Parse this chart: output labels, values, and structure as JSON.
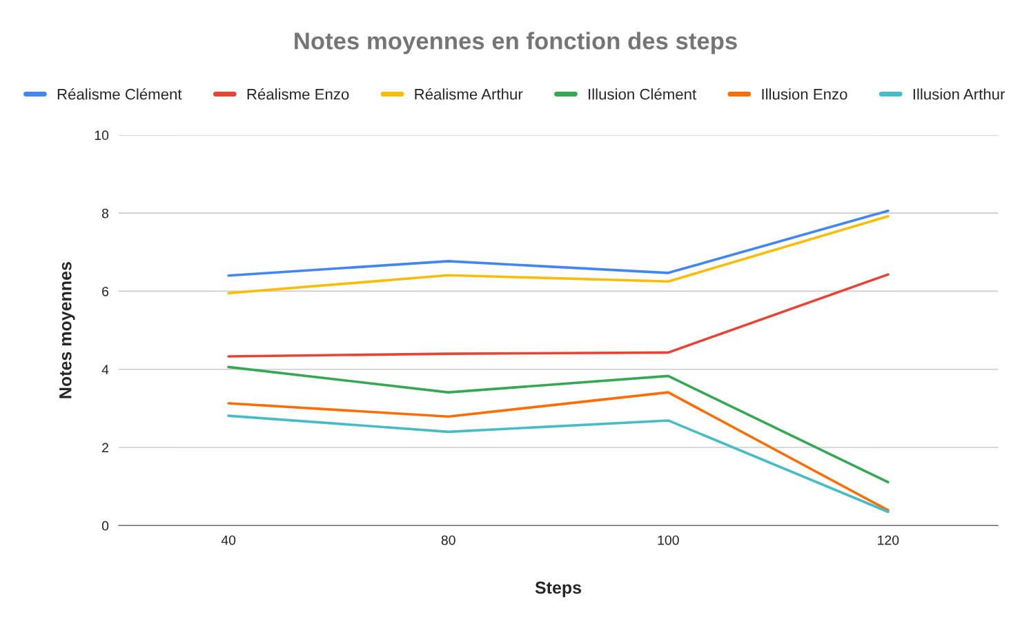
{
  "chart_data": {
    "type": "line",
    "title": "Notes moyennes en fonction des steps",
    "xlabel": "Steps",
    "ylabel": "Notes moyennes",
    "categories": [
      "40",
      "80",
      "100",
      "120"
    ],
    "series": [
      {
        "name": "Réalisme Clément",
        "color": "#4285f4",
        "values": [
          6.4,
          6.77,
          6.47,
          8.06
        ]
      },
      {
        "name": "Réalisme Enzo",
        "color": "#ea4335",
        "values": [
          4.33,
          4.4,
          4.43,
          6.43
        ]
      },
      {
        "name": "Réalisme Arthur",
        "color": "#fbbc04",
        "values": [
          5.95,
          6.41,
          6.25,
          7.92
        ]
      },
      {
        "name": "Illusion Clément",
        "color": "#34a853",
        "values": [
          4.06,
          3.41,
          3.83,
          1.11
        ]
      },
      {
        "name": "Illusion Enzo",
        "color": "#ff6d01",
        "values": [
          3.13,
          2.79,
          3.41,
          0.39
        ]
      },
      {
        "name": "Illusion Arthur",
        "color": "#46bdc6",
        "values": [
          2.81,
          2.4,
          2.69,
          0.35
        ]
      }
    ],
    "ylim": [
      0,
      10
    ],
    "yticks": [
      0,
      2,
      4,
      6,
      8,
      10
    ],
    "grid": "y",
    "legend": "top",
    "marker": "none",
    "line_style": "solid"
  }
}
